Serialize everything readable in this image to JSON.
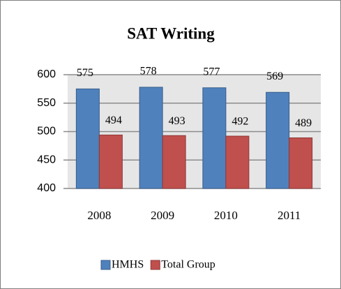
{
  "chart_data": {
    "type": "bar",
    "title": "SAT Writing",
    "categories": [
      "2008",
      "2009",
      "2010",
      "2011"
    ],
    "series": [
      {
        "name": "HMHS",
        "color": "#4f81bd",
        "values": [
          575,
          578,
          577,
          569
        ]
      },
      {
        "name": "Total Group",
        "color": "#c0504d",
        "values": [
          494,
          493,
          492,
          489
        ]
      }
    ],
    "ylim": [
      400,
      600
    ],
    "yticks": [
      400,
      450,
      500,
      550,
      600
    ],
    "grid": true,
    "legend": "bottom"
  }
}
